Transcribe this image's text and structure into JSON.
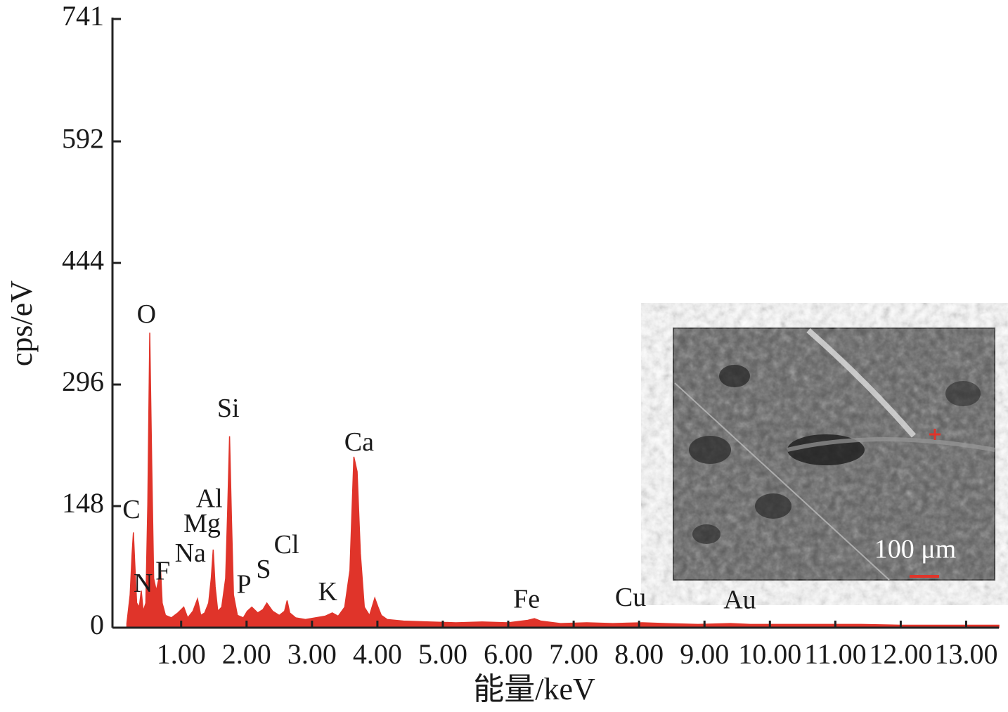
{
  "chart_data": {
    "type": "area",
    "xlabel": "能量/keV",
    "ylabel": "cps/eV",
    "color": "#e0342a",
    "x": [
      0.17,
      0.22,
      0.25,
      0.27,
      0.29,
      0.32,
      0.36,
      0.39,
      0.42,
      0.46,
      0.49,
      0.52,
      0.55,
      0.58,
      0.62,
      0.66,
      0.68,
      0.71,
      0.76,
      0.85,
      0.95,
      1.04,
      1.1,
      1.18,
      1.25,
      1.3,
      1.36,
      1.42,
      1.46,
      1.49,
      1.52,
      1.56,
      1.62,
      1.68,
      1.71,
      1.74,
      1.77,
      1.8,
      1.86,
      1.95,
      2.01,
      2.08,
      2.17,
      2.25,
      2.31,
      2.4,
      2.5,
      2.58,
      2.62,
      2.66,
      2.75,
      2.9,
      3.05,
      3.2,
      3.31,
      3.4,
      3.5,
      3.58,
      3.64,
      3.69,
      3.74,
      3.8,
      3.88,
      3.96,
      4.01,
      4.06,
      4.15,
      4.4,
      4.8,
      5.2,
      5.6,
      6.0,
      6.3,
      6.4,
      6.5,
      6.8,
      7.2,
      7.6,
      8.05,
      8.4,
      8.9,
      9.4,
      9.7,
      10.2,
      10.8,
      11.4,
      12.0,
      12.6,
      13.0,
      13.5
    ],
    "values": [
      5,
      40,
      90,
      116,
      80,
      30,
      25,
      45,
      20,
      30,
      150,
      359,
      200,
      60,
      45,
      60,
      80,
      30,
      15,
      12,
      18,
      25,
      12,
      20,
      35,
      15,
      18,
      30,
      60,
      95,
      50,
      20,
      25,
      60,
      140,
      233,
      130,
      40,
      15,
      12,
      20,
      25,
      18,
      22,
      30,
      20,
      15,
      20,
      33,
      18,
      12,
      10,
      12,
      14,
      18,
      14,
      25,
      70,
      208,
      190,
      90,
      25,
      15,
      36,
      25,
      15,
      10,
      8,
      7,
      6,
      7,
      6,
      9,
      11,
      8,
      5,
      6,
      5,
      6,
      5,
      4,
      5,
      4,
      4,
      4,
      4,
      3,
      3,
      3,
      3
    ],
    "xlim": [
      -0.05,
      13.5
    ],
    "ylim": [
      0,
      741
    ],
    "xticks": [
      {
        "value": 1,
        "label": "1.00"
      },
      {
        "value": 2,
        "label": "2.00"
      },
      {
        "value": 3,
        "label": "3.00"
      },
      {
        "value": 4,
        "label": "4.00"
      },
      {
        "value": 5,
        "label": "5.00"
      },
      {
        "value": 6,
        "label": "6.00"
      },
      {
        "value": 7,
        "label": "7.00"
      },
      {
        "value": 8,
        "label": "8.00"
      },
      {
        "value": 9,
        "label": "9.00"
      },
      {
        "value": 10,
        "label": "10.00"
      },
      {
        "value": 11,
        "label": "11.00"
      },
      {
        "value": 12,
        "label": "12.00"
      },
      {
        "value": 13,
        "label": "13.00"
      }
    ],
    "yticks": [
      0,
      148,
      296,
      444,
      592,
      741
    ],
    "annotations": [
      {
        "text": "C",
        "x": 0.24,
        "y": 141
      },
      {
        "text": "O",
        "x": 0.47,
        "y": 379
      },
      {
        "text": "N",
        "x": 0.42,
        "y": 51
      },
      {
        "text": "F",
        "x": 0.72,
        "y": 66
      },
      {
        "text": "Na",
        "x": 1.14,
        "y": 88
      },
      {
        "text": "Mg",
        "x": 1.32,
        "y": 124
      },
      {
        "text": "Al",
        "x": 1.43,
        "y": 154
      },
      {
        "text": "Si",
        "x": 1.72,
        "y": 264
      },
      {
        "text": "P",
        "x": 1.96,
        "y": 50
      },
      {
        "text": "S",
        "x": 2.26,
        "y": 68
      },
      {
        "text": "Cl",
        "x": 2.61,
        "y": 98
      },
      {
        "text": "K",
        "x": 3.24,
        "y": 41
      },
      {
        "text": "Ca",
        "x": 3.72,
        "y": 223
      },
      {
        "text": "Fe",
        "x": 6.28,
        "y": 32
      },
      {
        "text": "Cu",
        "x": 7.87,
        "y": 34
      },
      {
        "text": "Au",
        "x": 9.54,
        "y": 31
      }
    ],
    "inset_scale_label": "100 μm"
  }
}
